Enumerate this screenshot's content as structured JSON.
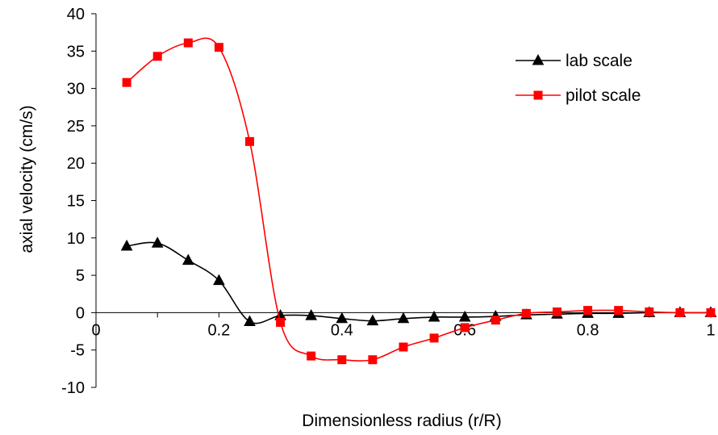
{
  "chart_data": {
    "type": "line",
    "title": "",
    "xlabel": "Dimensionless radius (r/R)",
    "ylabel": "axial velocity (cm/s)",
    "xlim": [
      0,
      1
    ],
    "ylim": [
      -10,
      40
    ],
    "x_ticks": [
      0,
      0.2,
      0.4,
      0.6,
      0.8,
      1
    ],
    "x_tick_labels": [
      "0",
      "0.2",
      "0.4",
      "0.6",
      "0.8",
      "1"
    ],
    "y_ticks": [
      -10,
      -5,
      0,
      5,
      10,
      15,
      20,
      25,
      30,
      35,
      40
    ],
    "y_tick_labels": [
      "-10",
      "-5",
      "0",
      "5",
      "10",
      "15",
      "20",
      "25",
      "30",
      "35",
      "40"
    ],
    "grid": false,
    "legend_position": "top-right",
    "series": [
      {
        "name": "lab scale",
        "color": "#000000",
        "marker": "triangle",
        "x": [
          0.05,
          0.1,
          0.15,
          0.2,
          0.25,
          0.3,
          0.35,
          0.4,
          0.45,
          0.5,
          0.55,
          0.6,
          0.65,
          0.7,
          0.75,
          0.8,
          0.85,
          0.9,
          0.95,
          1.0
        ],
        "values": [
          8.9,
          9.3,
          7.0,
          4.3,
          -1.2,
          -0.4,
          -0.4,
          -0.8,
          -1.1,
          -0.8,
          -0.6,
          -0.6,
          -0.5,
          -0.3,
          -0.2,
          -0.1,
          -0.1,
          0.0,
          0.0,
          0.0
        ]
      },
      {
        "name": "pilot scale",
        "color": "#ff0000",
        "marker": "square",
        "x": [
          0.05,
          0.1,
          0.15,
          0.2,
          0.25,
          0.3,
          0.35,
          0.4,
          0.45,
          0.5,
          0.55,
          0.6,
          0.65,
          0.7,
          0.75,
          0.8,
          0.85,
          0.9,
          0.95,
          1.0
        ],
        "values": [
          30.8,
          34.3,
          36.1,
          35.5,
          22.9,
          -1.3,
          -5.8,
          -6.3,
          -6.3,
          -4.6,
          -3.4,
          -2.0,
          -1.0,
          -0.1,
          0.1,
          0.3,
          0.3,
          0.1,
          0.0,
          0.0
        ]
      }
    ]
  }
}
